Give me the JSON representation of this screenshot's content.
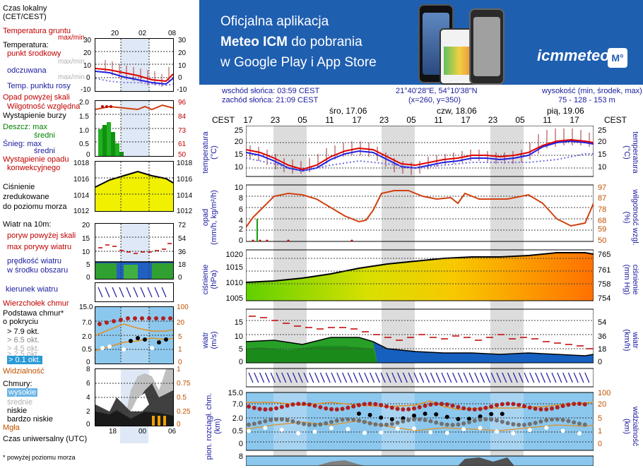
{
  "legend": {
    "time_local": "Czas lokalny\n(CET/CEST)",
    "time_local_ticks": [
      "20",
      "02",
      "08"
    ],
    "ground_temp": "Temperatura gruntu",
    "ground_temp_sub": "max/min",
    "temp": "Temperatura:",
    "temp_mid": "punkt środkowy",
    "temp_maxmin": "max/min",
    "feels": "odczuwana",
    "feels_maxmin": "max/min",
    "dew": "Temp. punktu rosy",
    "temp_ticks": [
      "30",
      "20",
      "10",
      "0",
      "-10"
    ],
    "rain_above": "Opad powyżej skali",
    "humidity": "Wilgotność względna",
    "storm": "Wystąpienie burzy",
    "rain_max": "Deszcz: max",
    "rain_avg": "średni",
    "snow_max": "Śnieg:   max",
    "snow_avg": "średni",
    "conv": "Wystąpienie opadu",
    "conv2": "konwekcyjnego",
    "rain_ticks_l": [
      "2.0",
      "1.5",
      "1.0",
      "0.5",
      "0"
    ],
    "rain_ticks_r": [
      "96",
      "84",
      "73",
      "61",
      "50"
    ],
    "pressure": "Ciśnienie\nzredukowane\ndo poziomu morza",
    "pres_ticks_l": [
      "1018",
      "1016",
      "1014",
      "1012"
    ],
    "pres_ticks_r": [
      "1018",
      "1016",
      "1014",
      "1012"
    ],
    "wind": "Wiatr na 10m:",
    "gust_above": "poryw powyżej skali",
    "gust_max": "max porywy wiatru",
    "wind_speed": "prędkość wiatru\nw środku obszaru",
    "wind_ticks_l": [
      "20",
      "15",
      "10",
      "5",
      "0"
    ],
    "wind_ticks_r": [
      "72",
      "54",
      "36",
      "18",
      "0"
    ],
    "wind_dir": "kierunek wiatru",
    "cloud_top": "Wierzchołek chmur",
    "cloud_base": "Podstawa chmur*\no pokryciu",
    "okt1": "> 7.9 okt.",
    "okt2": "> 6.5 okt.",
    "okt3": "> 4.5 okt.",
    "okt4": "> 2.5 okt.",
    "okt5": "> 0.1 okt.",
    "visibility": "Widzialność",
    "cb_ticks_l": [
      "15.0",
      "7.0",
      "2.0",
      "0.5",
      "0"
    ],
    "cb_ticks_r": [
      "100",
      "20",
      "5",
      "1",
      "0"
    ],
    "clouds": "Chmury:",
    "cl_high": "wysokie",
    "cl_mid": "średnie",
    "cl_low": "niskie",
    "cl_vlow": "bardzo niskie",
    "fog": "Mgła",
    "cl_ticks_l": [
      "8",
      "6",
      "4",
      "2",
      "0"
    ],
    "cl_ticks_r": [
      "1",
      "0.75",
      "0.5",
      "0.25",
      "0"
    ],
    "utc": "Czas uniwersalny (UTC)",
    "utc_ticks": [
      "18",
      "00",
      "06"
    ],
    "footnote": "* powyżej poziomu morza"
  },
  "banner": {
    "line1": "Oficjalna aplikacja",
    "line2_bold": "Meteo ICM",
    "line2_rest": " do pobrania",
    "line3": "w Google Play i App Store",
    "brand": "icmmeteo",
    "badge": "M°"
  },
  "header": {
    "sunrise": "wschód słońca: 03:59 CEST",
    "sunset": "zachód słońca: 21:09 CEST",
    "coords": "21°40'28\"E, 54°10'38\"N",
    "grid": "(x=260,  y=350)",
    "alt_label": "wysokość (min, środek, max)",
    "alt_values": "75 - 128 - 153 m",
    "days": [
      "śro, 17.06",
      "czw, 18.06",
      "pią, 19.06"
    ],
    "tz": "CEST",
    "hours": [
      "17",
      "23",
      "05",
      "11",
      "17",
      "23",
      "05",
      "11",
      "17",
      "23",
      "05",
      "11",
      "17"
    ]
  },
  "panels": {
    "temp": {
      "label": "temperatura\n(°C)",
      "ticks_l": [
        "25",
        "20",
        "15",
        "10"
      ],
      "ticks_r": [
        "25",
        "20",
        "15",
        "10"
      ]
    },
    "rain": {
      "label_l": "opad\n(mm/h, kg/m²/h)",
      "label_r": "wilgotność wzgl.\n(%)",
      "ticks_l": [
        "10",
        "8",
        "6",
        "4",
        "2",
        "0"
      ],
      "ticks_r": [
        "97",
        "87",
        "78",
        "68",
        "59",
        "50"
      ]
    },
    "pres": {
      "label_l": "ciśnienie\n(hPa)",
      "label_r": "ciśnienie\n(mm Hg)",
      "ticks_l": [
        "1020",
        "1015",
        "1010",
        "1005"
      ],
      "ticks_r": [
        "765",
        "761",
        "758",
        "754"
      ]
    },
    "wind": {
      "label_l": "wiatr\n(m/s)",
      "label_r": "wiatr\n(km/h)",
      "ticks_l": [
        "15",
        "10",
        "5",
        "0"
      ],
      "ticks_r": [
        "54",
        "36",
        "18",
        "0"
      ]
    },
    "cb": {
      "label_l": "pion. rozciągł. chm.\n(km)",
      "label_r": "widzialność\n(km)",
      "ticks_l": [
        "15.0",
        "7.0",
        "2.0",
        "0.5",
        "0"
      ],
      "ticks_r": [
        "100",
        "20",
        "5",
        "1",
        "0"
      ]
    },
    "cl": {
      "ticks_l": [
        "8"
      ]
    }
  },
  "colors": {
    "banner": "#1f5fb0",
    "temp_red": "#e00000",
    "temp_blue": "#2020e0",
    "humidity": "#d04010",
    "rain": "#10a010",
    "pressure_fill_start": "#60d000",
    "pressure_fill_end": "#ff7000"
  }
}
